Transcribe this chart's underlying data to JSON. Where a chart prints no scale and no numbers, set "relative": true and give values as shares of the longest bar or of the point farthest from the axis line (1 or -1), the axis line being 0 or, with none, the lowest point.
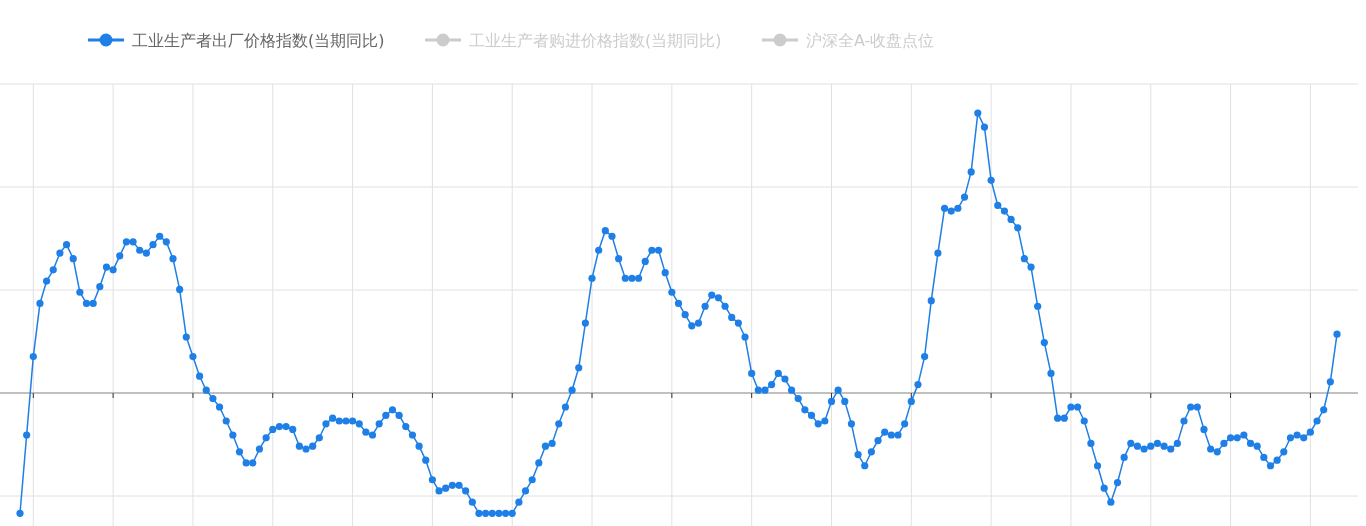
{
  "chart_data": {
    "type": "line",
    "relative": true,
    "grid": true,
    "legend": "top",
    "marker": "circle",
    "line_style": "solid",
    "categories": [
      null,
      null,
      null,
      null,
      null,
      null,
      null,
      null,
      null,
      null,
      null,
      null,
      null,
      null,
      null,
      null,
      null,
      null,
      null,
      null,
      null,
      null,
      null,
      null,
      null,
      null,
      null,
      null,
      null,
      null,
      null,
      null,
      null,
      null,
      null,
      null,
      null,
      null,
      null,
      null,
      null,
      null,
      null,
      null,
      null,
      null,
      null,
      null,
      null,
      null,
      null,
      null,
      null,
      null,
      null,
      null,
      null,
      null,
      null,
      null,
      null,
      null,
      null,
      null,
      null,
      null,
      null,
      null,
      null,
      null,
      null,
      null,
      null,
      null,
      null,
      null,
      null,
      null,
      null,
      null,
      null,
      null,
      null,
      null,
      null,
      null,
      null,
      null,
      null,
      null,
      null,
      null,
      null,
      null,
      null,
      null,
      null,
      null,
      null,
      null,
      null,
      null,
      null,
      null,
      null,
      null,
      null,
      null,
      null,
      null,
      null,
      null,
      null,
      null,
      null,
      null,
      null,
      null,
      null,
      null,
      null,
      null,
      null,
      null,
      null,
      null,
      null,
      null,
      null,
      null,
      null,
      null,
      null,
      null,
      null,
      null,
      null,
      null,
      null,
      null,
      null,
      null,
      null,
      null,
      null,
      null,
      null,
      null,
      null,
      null,
      null,
      null,
      null,
      null,
      null,
      null,
      null,
      null,
      null,
      null,
      null,
      null,
      null,
      null,
      null,
      null,
      null,
      null,
      null,
      null,
      null,
      null,
      null,
      null,
      null,
      null,
      null,
      null,
      null,
      null,
      null,
      null,
      null,
      null,
      null,
      null,
      null,
      null,
      null,
      null,
      null,
      null,
      null,
      null,
      null,
      null,
      null,
      null,
      null
    ],
    "series": [
      {
        "name": "工业生产者出厂价格指数(当期同比)",
        "color": "#1e7fe6",
        "values": [
          -0.43,
          -0.15,
          0.13,
          0.32,
          0.4,
          0.44,
          0.5,
          0.53,
          0.48,
          0.36,
          0.32,
          0.32,
          0.38,
          0.45,
          0.44,
          0.49,
          0.54,
          0.54,
          0.51,
          0.5,
          0.53,
          0.56,
          0.54,
          0.48,
          0.37,
          0.2,
          0.13,
          0.06,
          0.01,
          -0.02,
          -0.05,
          -0.1,
          -0.15,
          -0.21,
          -0.25,
          -0.25,
          -0.2,
          -0.16,
          -0.13,
          -0.12,
          -0.12,
          -0.13,
          -0.19,
          -0.2,
          -0.19,
          -0.16,
          -0.11,
          -0.09,
          -0.1,
          -0.1,
          -0.1,
          -0.11,
          -0.14,
          -0.15,
          -0.11,
          -0.08,
          -0.06,
          -0.08,
          -0.12,
          -0.15,
          -0.19,
          -0.24,
          -0.31,
          -0.35,
          -0.34,
          -0.33,
          -0.33,
          -0.35,
          -0.39,
          -0.43,
          -0.43,
          -0.43,
          -0.43,
          -0.43,
          -0.43,
          -0.39,
          -0.35,
          -0.31,
          -0.25,
          -0.19,
          -0.18,
          -0.11,
          -0.05,
          0.01,
          0.09,
          0.25,
          0.41,
          0.51,
          0.58,
          0.56,
          0.48,
          0.41,
          0.41,
          0.41,
          0.47,
          0.51,
          0.51,
          0.43,
          0.36,
          0.32,
          0.28,
          0.24,
          0.25,
          0.31,
          0.35,
          0.34,
          0.31,
          0.27,
          0.25,
          0.2,
          0.07,
          0.01,
          0.01,
          0.03,
          0.07,
          0.05,
          0.01,
          -0.02,
          -0.06,
          -0.08,
          -0.11,
          -0.1,
          -0.03,
          0.01,
          -0.03,
          -0.11,
          -0.22,
          -0.26,
          -0.21,
          -0.17,
          -0.14,
          -0.15,
          -0.15,
          -0.11,
          -0.03,
          0.03,
          0.13,
          0.33,
          0.5,
          0.66,
          0.65,
          0.66,
          0.7,
          0.79,
          1,
          0.95,
          0.76,
          0.67,
          0.65,
          0.62,
          0.59,
          0.48,
          0.45,
          0.31,
          0.18,
          0.07,
          -0.09,
          -0.09,
          -0.05,
          -0.05,
          -0.1,
          -0.18,
          -0.26,
          -0.34,
          -0.39,
          -0.32,
          -0.23,
          -0.18,
          -0.19,
          -0.2,
          -0.19,
          -0.18,
          -0.19,
          -0.2,
          -0.18,
          -0.1,
          -0.05,
          -0.05,
          -0.13,
          -0.2,
          -0.21,
          -0.18,
          -0.16,
          -0.16,
          -0.15,
          -0.18,
          -0.19,
          -0.23,
          -0.26,
          -0.24,
          -0.21,
          -0.16,
          -0.15,
          -0.16,
          -0.14,
          -0.1,
          -0.06,
          0.04,
          0.21
        ]
      },
      {
        "name": "工业生产者购进价格指数(当期同比)",
        "color": "#cccccc",
        "values": [
          null,
          null,
          null,
          null,
          null,
          null,
          null,
          null,
          null,
          null,
          null,
          null,
          null,
          null,
          null,
          null,
          null,
          null,
          null,
          null,
          null,
          null,
          null,
          null,
          null,
          null,
          null,
          null,
          null,
          null,
          null,
          null,
          null,
          null,
          null,
          null,
          null,
          null,
          null,
          null,
          null,
          null,
          null,
          null,
          null,
          null,
          null,
          null,
          null,
          null,
          null,
          null,
          null,
          null,
          null,
          null,
          null,
          null,
          null,
          null,
          null,
          null,
          null,
          null,
          null,
          null,
          null,
          null,
          null,
          null,
          null,
          null,
          null,
          null,
          null,
          null,
          null,
          null,
          null,
          null,
          null,
          null,
          null,
          null,
          null,
          null,
          null,
          null,
          null,
          null,
          null,
          null,
          null,
          null,
          null,
          null,
          null,
          null,
          null,
          null,
          null,
          null,
          null,
          null,
          null,
          null,
          null,
          null,
          null,
          null,
          null,
          null,
          null,
          null,
          null,
          null,
          null,
          null,
          null,
          null,
          null,
          null,
          null,
          null,
          null,
          null,
          null,
          null,
          null,
          null,
          null,
          null,
          null,
          null,
          null,
          null,
          null,
          null,
          null,
          null,
          null,
          null,
          null,
          null,
          null,
          null,
          null,
          null,
          null,
          null,
          null,
          null,
          null,
          null,
          null,
          null,
          null,
          null,
          null,
          null,
          null,
          null,
          null,
          null,
          null,
          null,
          null,
          null,
          null,
          null,
          null,
          null,
          null,
          null,
          null,
          null,
          null,
          null,
          null,
          null,
          null,
          null,
          null,
          null,
          null,
          null,
          null,
          null,
          null,
          null,
          null,
          null,
          null,
          null,
          null,
          null,
          null,
          null,
          null
        ]
      },
      {
        "name": "沪深全A-收盘点位",
        "color": "#cccccc",
        "values": [
          null,
          null,
          null,
          null,
          null,
          null,
          null,
          null,
          null,
          null,
          null,
          null,
          null,
          null,
          null,
          null,
          null,
          null,
          null,
          null,
          null,
          null,
          null,
          null,
          null,
          null,
          null,
          null,
          null,
          null,
          null,
          null,
          null,
          null,
          null,
          null,
          null,
          null,
          null,
          null,
          null,
          null,
          null,
          null,
          null,
          null,
          null,
          null,
          null,
          null,
          null,
          null,
          null,
          null,
          null,
          null,
          null,
          null,
          null,
          null,
          null,
          null,
          null,
          null,
          null,
          null,
          null,
          null,
          null,
          null,
          null,
          null,
          null,
          null,
          null,
          null,
          null,
          null,
          null,
          null,
          null,
          null,
          null,
          null,
          null,
          null,
          null,
          null,
          null,
          null,
          null,
          null,
          null,
          null,
          null,
          null,
          null,
          null,
          null,
          null,
          null,
          null,
          null,
          null,
          null,
          null,
          null,
          null,
          null,
          null,
          null,
          null,
          null,
          null,
          null,
          null,
          null,
          null,
          null,
          null,
          null,
          null,
          null,
          null,
          null,
          null,
          null,
          null,
          null,
          null,
          null,
          null,
          null,
          null,
          null,
          null,
          null,
          null,
          null,
          null,
          null,
          null,
          null,
          null,
          null,
          null,
          null,
          null,
          null,
          null,
          null,
          null,
          null,
          null,
          null,
          null,
          null,
          null,
          null,
          null,
          null,
          null,
          null,
          null,
          null,
          null,
          null,
          null,
          null,
          null,
          null,
          null,
          null,
          null,
          null,
          null,
          null,
          null,
          null,
          null,
          null,
          null,
          null,
          null,
          null,
          null,
          null,
          null,
          null,
          null,
          null,
          null,
          null,
          null,
          null,
          null,
          null,
          null,
          null
        ]
      }
    ]
  }
}
